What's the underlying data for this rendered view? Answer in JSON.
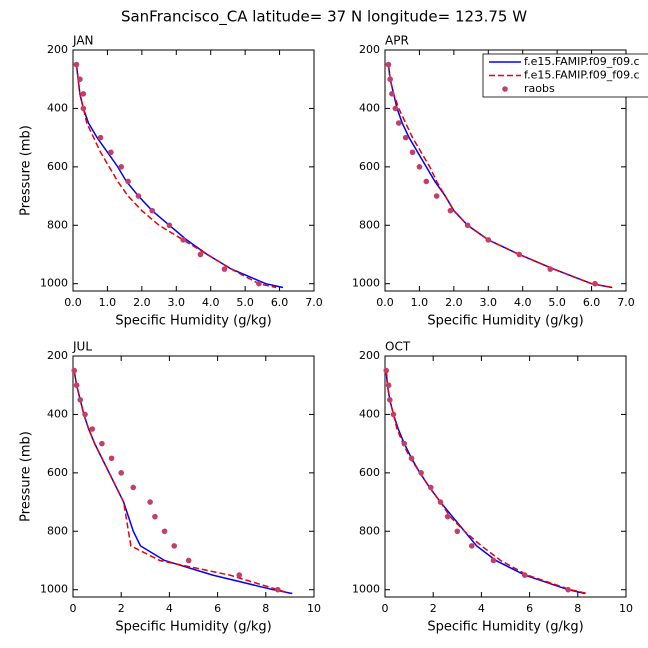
{
  "title": "SanFrancisco_CA  latitude= 37 N longitude= 123.75 W",
  "chart_data": [
    {
      "type": "line",
      "title": "JAN",
      "xlabel": "Specific Humidity (g/kg)",
      "ylabel": "Pressure (mb)",
      "xlim": [
        0,
        7
      ],
      "xticks": [
        {
          "value": 0,
          "label": "0.0"
        },
        {
          "value": 1,
          "label": "1.0"
        },
        {
          "value": 2,
          "label": "2.0"
        },
        {
          "value": 3,
          "label": "3.0"
        },
        {
          "value": 4,
          "label": "4.0"
        },
        {
          "value": 5,
          "label": "5.0"
        },
        {
          "value": 6,
          "label": "6.0"
        },
        {
          "value": 7,
          "label": "7.0"
        }
      ],
      "ylim": [
        1025,
        200
      ],
      "yticks": [
        200,
        400,
        600,
        800,
        1000
      ],
      "series": [
        {
          "color": "#0000ff",
          "style": "solid",
          "x": [
            0.1,
            0.15,
            0.2,
            0.3,
            0.45,
            0.7,
            1.0,
            1.3,
            1.55,
            1.9,
            2.3,
            2.8,
            3.3,
            3.9,
            4.6,
            5.6,
            6.1
          ],
          "values": [
            250,
            300,
            350,
            400,
            450,
            500,
            550,
            600,
            650,
            700,
            750,
            800,
            850,
            900,
            950,
            1000,
            1013
          ]
        },
        {
          "color": "#e8000b",
          "style": "dashed",
          "x": [
            0.1,
            0.15,
            0.2,
            0.3,
            0.4,
            0.6,
            0.8,
            1.05,
            1.3,
            1.6,
            2.0,
            2.5,
            3.2,
            3.9,
            4.6,
            5.4,
            5.9
          ],
          "values": [
            250,
            300,
            350,
            400,
            450,
            500,
            550,
            600,
            650,
            700,
            750,
            800,
            850,
            900,
            950,
            1000,
            1013
          ]
        },
        {
          "color": "#c0406a",
          "style": "markers",
          "x": [
            0.1,
            0.2,
            0.3,
            0.3,
            0.8,
            1.1,
            1.4,
            1.6,
            1.9,
            2.3,
            2.8,
            3.2,
            3.7,
            4.4,
            5.4
          ],
          "values": [
            250,
            300,
            350,
            400,
            500,
            550,
            600,
            650,
            700,
            750,
            800,
            850,
            900,
            950,
            1000
          ]
        }
      ]
    },
    {
      "type": "line",
      "title": "APR",
      "xlabel": "Specific Humidity (g/kg)",
      "legend": "upper right",
      "xlim": [
        0,
        7
      ],
      "xticks": [
        {
          "value": 0,
          "label": "0.0"
        },
        {
          "value": 1,
          "label": "1.0"
        },
        {
          "value": 2,
          "label": "2.0"
        },
        {
          "value": 3,
          "label": "3.0"
        },
        {
          "value": 4,
          "label": "4.0"
        },
        {
          "value": 5,
          "label": "5.0"
        },
        {
          "value": 6,
          "label": "6.0"
        },
        {
          "value": 7,
          "label": "7.0"
        }
      ],
      "ylim": [
        1025,
        200
      ],
      "yticks": [
        200,
        400,
        600,
        800,
        1000
      ],
      "series": [
        {
          "name": "f.e15.FAMIP.f09_f09.c",
          "color": "#0000ff",
          "style": "solid",
          "x": [
            0.1,
            0.15,
            0.25,
            0.35,
            0.5,
            0.7,
            0.95,
            1.2,
            1.45,
            1.75,
            2.0,
            2.4,
            3.0,
            3.9,
            4.9,
            6.0,
            6.6
          ],
          "values": [
            250,
            300,
            350,
            400,
            450,
            500,
            550,
            600,
            650,
            700,
            750,
            800,
            850,
            900,
            950,
            1000,
            1013
          ]
        },
        {
          "name": "f.e15.FAMIP.f09_f09.c",
          "color": "#e8000b",
          "style": "dashed",
          "x": [
            0.1,
            0.15,
            0.25,
            0.4,
            0.6,
            0.8,
            1.05,
            1.3,
            1.5,
            1.75,
            2.0,
            2.4,
            3.0,
            3.9,
            4.9,
            6.0,
            6.6
          ],
          "values": [
            250,
            300,
            350,
            400,
            450,
            500,
            550,
            600,
            650,
            700,
            750,
            800,
            850,
            900,
            950,
            1000,
            1013
          ]
        },
        {
          "name": "raobs",
          "color": "#c0406a",
          "style": "markers",
          "x": [
            0.1,
            0.15,
            0.2,
            0.3,
            0.4,
            0.6,
            0.8,
            1.0,
            1.2,
            1.5,
            1.9,
            2.4,
            3.0,
            3.9,
            4.8,
            6.1
          ],
          "values": [
            250,
            300,
            350,
            400,
            450,
            500,
            550,
            600,
            650,
            700,
            750,
            800,
            850,
            900,
            950,
            1000
          ]
        }
      ]
    },
    {
      "type": "line",
      "title": "JUL",
      "xlabel": "Specific Humidity (g/kg)",
      "ylabel": "Pressure (mb)",
      "xlim": [
        0,
        10
      ],
      "xticks": [
        0,
        2,
        4,
        6,
        8,
        10
      ],
      "ylim": [
        1025,
        200
      ],
      "yticks": [
        200,
        400,
        600,
        800,
        1000
      ],
      "series": [
        {
          "color": "#0000ff",
          "style": "solid",
          "x": [
            0.05,
            0.15,
            0.3,
            0.45,
            0.65,
            0.9,
            1.2,
            1.5,
            1.8,
            2.1,
            2.3,
            2.5,
            2.8,
            3.8,
            5.8,
            8.3,
            9.1
          ],
          "values": [
            250,
            300,
            350,
            400,
            450,
            500,
            550,
            600,
            650,
            700,
            750,
            800,
            850,
            900,
            950,
            1000,
            1013
          ]
        },
        {
          "color": "#e8000b",
          "style": "dashed",
          "x": [
            0.05,
            0.15,
            0.3,
            0.45,
            0.65,
            0.9,
            1.2,
            1.5,
            1.8,
            2.1,
            2.2,
            2.3,
            2.4,
            3.6,
            6.5,
            8.5,
            9.0
          ],
          "values": [
            250,
            300,
            350,
            400,
            450,
            500,
            550,
            600,
            650,
            700,
            750,
            800,
            850,
            900,
            950,
            1000,
            1013
          ]
        },
        {
          "color": "#c0406a",
          "style": "markers",
          "x": [
            0.05,
            0.15,
            0.3,
            0.5,
            0.8,
            1.2,
            1.6,
            2.0,
            2.5,
            3.2,
            3.4,
            3.8,
            4.2,
            4.8,
            6.9,
            8.5
          ],
          "values": [
            250,
            300,
            350,
            400,
            450,
            500,
            550,
            600,
            650,
            700,
            750,
            800,
            850,
            900,
            950,
            1000
          ]
        }
      ]
    },
    {
      "type": "line",
      "title": "OCT",
      "xlabel": "Specific Humidity (g/kg)",
      "xlim": [
        0,
        10
      ],
      "xticks": [
        0,
        2,
        4,
        6,
        8,
        10
      ],
      "ylim": [
        1025,
        200
      ],
      "yticks": [
        200,
        400,
        600,
        800,
        1000
      ],
      "series": [
        {
          "color": "#0000ff",
          "style": "solid",
          "x": [
            0.05,
            0.1,
            0.2,
            0.35,
            0.55,
            0.8,
            1.1,
            1.45,
            1.85,
            2.3,
            2.8,
            3.3,
            3.8,
            4.6,
            5.8,
            7.6,
            8.3
          ],
          "values": [
            250,
            300,
            350,
            400,
            450,
            500,
            550,
            600,
            650,
            700,
            750,
            800,
            850,
            900,
            950,
            1000,
            1013
          ]
        },
        {
          "color": "#e8000b",
          "style": "dashed",
          "x": [
            0.05,
            0.1,
            0.2,
            0.35,
            0.5,
            0.75,
            1.05,
            1.45,
            1.85,
            2.3,
            2.7,
            3.3,
            4.0,
            4.8,
            5.9,
            7.7,
            8.4
          ],
          "values": [
            250,
            300,
            350,
            400,
            450,
            500,
            550,
            600,
            650,
            700,
            750,
            800,
            850,
            900,
            950,
            1000,
            1013
          ]
        },
        {
          "color": "#c0406a",
          "style": "markers",
          "x": [
            0.05,
            0.15,
            0.2,
            0.35,
            0.8,
            1.1,
            1.5,
            1.9,
            2.3,
            2.6,
            3.0,
            3.6,
            4.5,
            5.8,
            7.6
          ],
          "values": [
            250,
            300,
            350,
            400,
            500,
            550,
            600,
            650,
            700,
            750,
            800,
            850,
            900,
            950,
            1000
          ]
        }
      ]
    }
  ]
}
